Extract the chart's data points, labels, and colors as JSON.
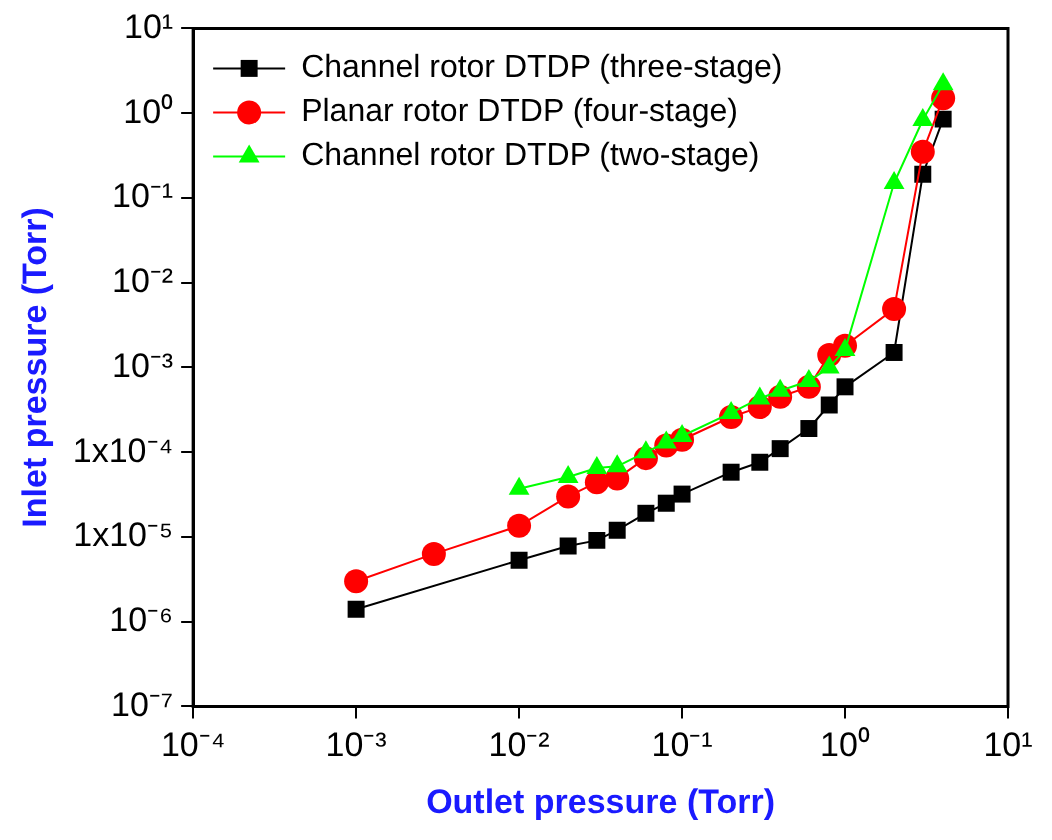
{
  "chart_data": {
    "type": "line",
    "xlabel": "Outlet pressure (Torr)",
    "ylabel": "Inlet pressure (Torr)",
    "log": "xy",
    "grid": false,
    "legend": "top left",
    "xlim": [
      0.0001,
      10
    ],
    "ylim": [
      1e-07,
      10
    ],
    "xticks": [
      {
        "value": 0.0001,
        "label": "10⁻⁴"
      },
      {
        "value": 0.001,
        "label": "10⁻³"
      },
      {
        "value": 0.01,
        "label": "10⁻²"
      },
      {
        "value": 0.1,
        "label": "10⁻¹"
      },
      {
        "value": 1,
        "label": "10⁰"
      },
      {
        "value": 10,
        "label": "10¹"
      }
    ],
    "yticks": [
      {
        "value": 1e-07,
        "label": "10⁻⁷"
      },
      {
        "value": 1e-06,
        "label": "10⁻⁶"
      },
      {
        "value": 1e-05,
        "label": "1x10⁻⁵"
      },
      {
        "value": 0.0001,
        "label": "1x10⁻⁴"
      },
      {
        "value": 0.001,
        "label": "10⁻³"
      },
      {
        "value": 0.01,
        "label": "10⁻²"
      },
      {
        "value": 0.1,
        "label": "10⁻¹"
      },
      {
        "value": 1,
        "label": "10⁰"
      },
      {
        "value": 10,
        "label": "10¹"
      }
    ],
    "series": [
      {
        "name": "Channel rotor DTDP (three-stage)",
        "color": "#000000",
        "marker": "square",
        "x": [
          0.001,
          0.01,
          0.02,
          0.03,
          0.04,
          0.06,
          0.08,
          0.1,
          0.2,
          0.3,
          0.4,
          0.6,
          0.8,
          1.0,
          2,
          3,
          4
        ],
        "values": [
          1.4e-06,
          5.3e-06,
          7.8e-06,
          9.1e-06,
          1.2e-05,
          1.9e-05,
          2.5e-05,
          3.2e-05,
          5.8e-05,
          7.6e-05,
          0.00011,
          0.00019,
          0.00036,
          0.00059,
          0.0015,
          0.19,
          0.85
        ]
      },
      {
        "name": "Planar rotor DTDP (four-stage)",
        "color": "#ff0000",
        "marker": "circle",
        "x": [
          0.001,
          0.003,
          0.01,
          0.02,
          0.03,
          0.04,
          0.06,
          0.08,
          0.1,
          0.2,
          0.3,
          0.4,
          0.6,
          0.8,
          1.0,
          2,
          3,
          4
        ],
        "values": [
          3e-06,
          6.3e-06,
          1.35e-05,
          3e-05,
          4.4e-05,
          4.9e-05,
          8.5e-05,
          0.00012,
          0.00014,
          0.00026,
          0.00034,
          0.00045,
          0.00059,
          0.0014,
          0.0018,
          0.0049,
          0.35,
          1.5
        ]
      },
      {
        "name": "Channel rotor DTDP (two-stage)",
        "color": "#00ff00",
        "marker": "triangle",
        "x": [
          0.01,
          0.02,
          0.03,
          0.04,
          0.06,
          0.08,
          0.1,
          0.2,
          0.3,
          0.4,
          0.6,
          0.8,
          1.0,
          2,
          3,
          4
        ],
        "values": [
          3.7e-05,
          5.1e-05,
          6.5e-05,
          6.8e-05,
          0.0001,
          0.00013,
          0.000155,
          0.00029,
          0.00043,
          0.00053,
          0.00069,
          0.001,
          0.0016,
          0.15,
          0.83,
          2.2
        ]
      }
    ]
  }
}
